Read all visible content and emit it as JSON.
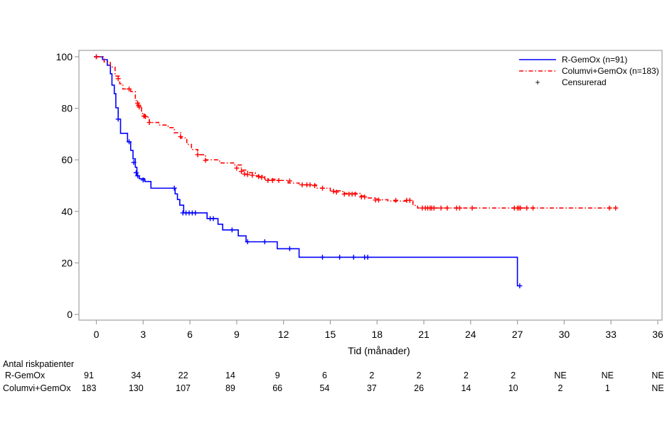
{
  "chart_data": {
    "type": "line",
    "subtype": "kaplan-meier",
    "title": "",
    "xlabel": "Tid (månader)",
    "ylabel": "",
    "xlim": [
      -1,
      36
    ],
    "ylim": [
      -2,
      102
    ],
    "xticks": [
      0,
      3,
      6,
      9,
      12,
      15,
      18,
      21,
      24,
      27,
      30,
      33,
      36
    ],
    "yticks": [
      0,
      20,
      40,
      60,
      80,
      100
    ],
    "grid": false,
    "legend_position": "top-right",
    "legend": [
      {
        "label": "R-GemOx (n=91)",
        "style": "solid",
        "color": "#0000ff"
      },
      {
        "label": "Columvi+GemOx (n=183)",
        "style": "dash-dot",
        "color": "#ff0000"
      },
      {
        "label": "Censurerad",
        "style": "plus-marker",
        "color": "#000000",
        "symbol": "+"
      }
    ],
    "series": [
      {
        "name": "R-GemOx (n=91)",
        "color": "#0000ff",
        "steps": [
          [
            0,
            100
          ],
          [
            0.4,
            98.9
          ],
          [
            0.7,
            96.7
          ],
          [
            0.9,
            93.4
          ],
          [
            1.0,
            89.0
          ],
          [
            1.15,
            85.7
          ],
          [
            1.25,
            80.2
          ],
          [
            1.4,
            75.8
          ],
          [
            1.55,
            70.3
          ],
          [
            2.0,
            67.0
          ],
          [
            2.2,
            63.7
          ],
          [
            2.35,
            60.4
          ],
          [
            2.5,
            57.1
          ],
          [
            2.6,
            53.8
          ],
          [
            2.75,
            52.7
          ],
          [
            3.1,
            51.6
          ],
          [
            3.5,
            49.0
          ],
          [
            5.05,
            46.8
          ],
          [
            5.2,
            44.6
          ],
          [
            5.35,
            42.4
          ],
          [
            5.6,
            39.4
          ],
          [
            7.1,
            37.2
          ],
          [
            7.8,
            35.0
          ],
          [
            8.1,
            32.8
          ],
          [
            9.1,
            30.5
          ],
          [
            9.6,
            28.2
          ],
          [
            11.6,
            25.5
          ],
          [
            13.0,
            22.2
          ],
          [
            27.0,
            11.1
          ]
        ],
        "end": 27.2,
        "censored": [
          [
            0.0,
            100
          ],
          [
            1.4,
            75.8
          ],
          [
            2.1,
            67.0
          ],
          [
            2.4,
            59.0
          ],
          [
            2.55,
            55.0
          ],
          [
            2.65,
            53.8
          ],
          [
            3.0,
            52.2
          ],
          [
            5.0,
            49.0
          ],
          [
            5.55,
            39.4
          ],
          [
            5.75,
            39.4
          ],
          [
            5.95,
            39.4
          ],
          [
            6.15,
            39.4
          ],
          [
            6.35,
            39.4
          ],
          [
            7.3,
            37.2
          ],
          [
            7.5,
            37.2
          ],
          [
            8.7,
            32.8
          ],
          [
            9.7,
            28.2
          ],
          [
            10.8,
            28.2
          ],
          [
            12.4,
            25.5
          ],
          [
            14.5,
            22.2
          ],
          [
            15.6,
            22.2
          ],
          [
            16.5,
            22.2
          ],
          [
            17.2,
            22.2
          ],
          [
            17.4,
            22.2
          ],
          [
            27.15,
            11.1
          ]
        ]
      },
      {
        "name": "Columvi+GemOx (n=183)",
        "color": "#ff0000",
        "steps": [
          [
            0,
            100
          ],
          [
            0.5,
            98.0
          ],
          [
            0.9,
            96.0
          ],
          [
            1.2,
            92.5
          ],
          [
            1.5,
            89.5
          ],
          [
            1.7,
            87.5
          ],
          [
            2.2,
            86.5
          ],
          [
            2.5,
            83.0
          ],
          [
            2.65,
            81.0
          ],
          [
            2.9,
            78.0
          ],
          [
            3.1,
            76.5
          ],
          [
            3.4,
            74.5
          ],
          [
            4.0,
            73.5
          ],
          [
            4.6,
            72.5
          ],
          [
            5.0,
            70.5
          ],
          [
            5.4,
            68.5
          ],
          [
            5.8,
            66.0
          ],
          [
            6.1,
            64.0
          ],
          [
            6.5,
            62.0
          ],
          [
            7.0,
            60.0
          ],
          [
            7.9,
            58.8
          ],
          [
            8.8,
            58.0
          ],
          [
            9.3,
            56.0
          ],
          [
            9.7,
            55.0
          ],
          [
            10.2,
            53.8
          ],
          [
            10.8,
            52.5
          ],
          [
            11.6,
            52.0
          ],
          [
            12.3,
            51.0
          ],
          [
            13.0,
            50.3
          ],
          [
            14.1,
            49.0
          ],
          [
            15.0,
            48.0
          ],
          [
            15.8,
            47.0
          ],
          [
            16.9,
            46.0
          ],
          [
            17.3,
            45.2
          ],
          [
            18.0,
            44.5
          ],
          [
            18.7,
            44.0
          ],
          [
            20.3,
            42.3
          ],
          [
            20.6,
            41.3
          ]
        ],
        "end": 33.4,
        "censored": [
          [
            0.0,
            100
          ],
          [
            1.4,
            91.5
          ],
          [
            2.1,
            87.5
          ],
          [
            2.65,
            82.0
          ],
          [
            2.7,
            81.2
          ],
          [
            2.75,
            80.5
          ],
          [
            3.05,
            77.0
          ],
          [
            3.15,
            76.8
          ],
          [
            3.4,
            74.5
          ],
          [
            5.4,
            69.0
          ],
          [
            6.5,
            62.0
          ],
          [
            7.0,
            59.8
          ],
          [
            9.0,
            56.8
          ],
          [
            9.3,
            55.5
          ],
          [
            9.5,
            54.5
          ],
          [
            9.7,
            54.3
          ],
          [
            10.0,
            54.0
          ],
          [
            10.4,
            53.5
          ],
          [
            10.6,
            53.2
          ],
          [
            11.0,
            52.0
          ],
          [
            11.3,
            52.0
          ],
          [
            11.7,
            52.0
          ],
          [
            12.4,
            51.8
          ],
          [
            13.2,
            50.3
          ],
          [
            13.5,
            50.3
          ],
          [
            13.7,
            50.3
          ],
          [
            14.0,
            50.0
          ],
          [
            14.5,
            49.0
          ],
          [
            15.2,
            47.8
          ],
          [
            15.4,
            47.5
          ],
          [
            15.9,
            46.7
          ],
          [
            16.2,
            46.7
          ],
          [
            16.4,
            46.7
          ],
          [
            16.6,
            46.7
          ],
          [
            17.0,
            45.6
          ],
          [
            17.2,
            45.6
          ],
          [
            17.9,
            44.4
          ],
          [
            18.1,
            44.4
          ],
          [
            19.2,
            44.3
          ],
          [
            19.9,
            44.3
          ],
          [
            20.1,
            44.3
          ],
          [
            20.9,
            41.3
          ],
          [
            21.1,
            41.3
          ],
          [
            21.25,
            41.3
          ],
          [
            21.4,
            41.3
          ],
          [
            21.5,
            41.3
          ],
          [
            21.65,
            41.3
          ],
          [
            22.1,
            41.3
          ],
          [
            22.5,
            41.3
          ],
          [
            23.1,
            41.3
          ],
          [
            23.3,
            41.3
          ],
          [
            24.1,
            41.3
          ],
          [
            26.8,
            41.3
          ],
          [
            27.0,
            41.3
          ],
          [
            27.1,
            41.3
          ],
          [
            27.2,
            41.3
          ],
          [
            27.6,
            41.3
          ],
          [
            28.0,
            41.3
          ],
          [
            32.9,
            41.3
          ],
          [
            33.3,
            41.3
          ]
        ]
      }
    ],
    "risk_table": {
      "title": "Antal riskpatienter",
      "times": [
        0,
        3,
        6,
        9,
        12,
        15,
        18,
        21,
        24,
        27,
        30,
        33,
        36
      ],
      "rows": [
        {
          "label": "R-GemOx",
          "values": [
            "91",
            "34",
            "22",
            "14",
            "9",
            "6",
            "2",
            "2",
            "2",
            "2",
            "NE",
            "NE",
            "NE"
          ]
        },
        {
          "label": "Columvi+GemOx",
          "values": [
            "183",
            "130",
            "107",
            "89",
            "66",
            "54",
            "37",
            "26",
            "14",
            "10",
            "2",
            "1",
            "NE"
          ]
        }
      ]
    }
  }
}
